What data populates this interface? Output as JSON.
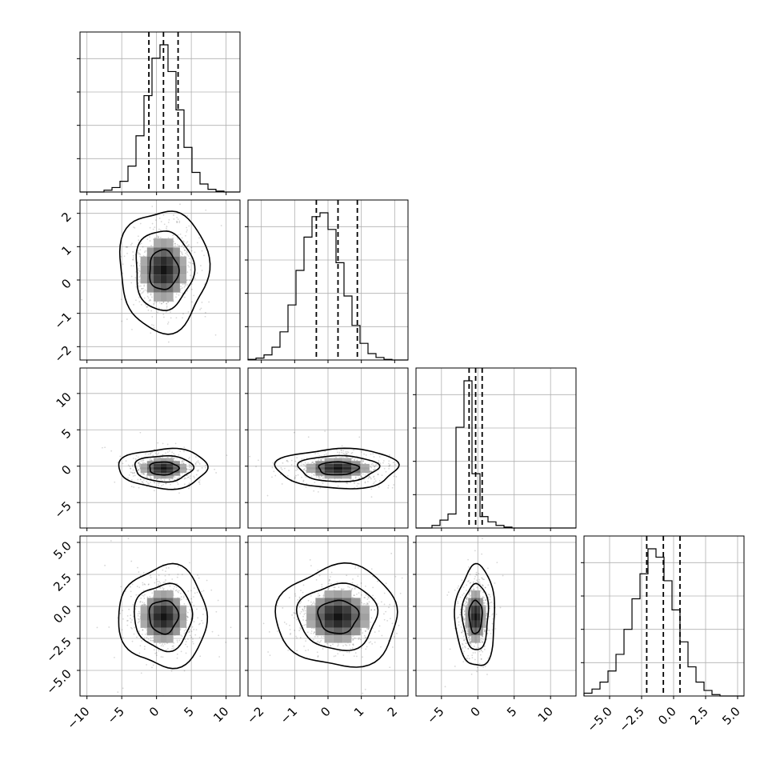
{
  "chart_data": {
    "type": "corner",
    "n_params": 4,
    "grid": true,
    "params": [
      {
        "range": [
          -11,
          12
        ],
        "ticks": [
          -10,
          -5,
          0,
          5,
          10
        ],
        "tick_labels": [
          "−10",
          "−5",
          "0",
          "5",
          "10"
        ],
        "mean": 1.0,
        "sigma": 2.1,
        "quantiles": [
          -1.1,
          1.0,
          3.1
        ]
      },
      {
        "range": [
          -2.4,
          2.4
        ],
        "ticks": [
          -2,
          -1,
          0,
          1,
          2
        ],
        "tick_labels": [
          "−2",
          "−1",
          "0",
          "1",
          "2"
        ],
        "mean": 0.3,
        "sigma": 0.6,
        "quantiles": [
          -0.35,
          0.3,
          0.88
        ]
      },
      {
        "range": [
          -8.5,
          13.5
        ],
        "ticks": [
          -5,
          0,
          5,
          10
        ],
        "tick_labels": [
          "−5",
          "0",
          "5",
          "10"
        ],
        "mean": -0.3,
        "sigma": 0.9,
        "quantiles": [
          -1.2,
          -0.3,
          0.6
        ]
      },
      {
        "range": [
          -7,
          5.5
        ],
        "ticks": [
          -5,
          -2.5,
          0,
          2.5,
          5
        ],
        "tick_labels": [
          "−5.0",
          "−2.5",
          "0.0",
          "2.5",
          "5.0"
        ],
        "mean": -0.8,
        "sigma": 1.3,
        "quantiles": [
          -2.1,
          -0.8,
          0.5
        ]
      }
    ],
    "histograms": [
      {
        "param": 0,
        "bins": [
          -11,
          12
        ],
        "counts": [
          0,
          0,
          0,
          0.2,
          0.5,
          1.2,
          2.9,
          6.3,
          10.8,
          15.0,
          16.5,
          13.5,
          9.2,
          5.0,
          2.2,
          0.9,
          0.3,
          0.1,
          0,
          0
        ]
      },
      {
        "param": 1,
        "bins": [
          -2.4,
          2.4
        ],
        "counts": [
          0.05,
          0.15,
          0.4,
          1.0,
          2.2,
          4.3,
          7.0,
          9.6,
          11.2,
          11.5,
          10.2,
          7.6,
          5.0,
          2.7,
          1.3,
          0.5,
          0.2,
          0.05,
          0,
          0
        ]
      },
      {
        "param": 2,
        "bins": [
          -8.5,
          13.5
        ],
        "counts": [
          0,
          0,
          0.3,
          0.9,
          1.6,
          11.5,
          16.8,
          6.2,
          1.3,
          0.7,
          0.3,
          0.1,
          0,
          0,
          0,
          0,
          0,
          0,
          0,
          0
        ]
      },
      {
        "param": 3,
        "bins": [
          -7,
          5.5
        ],
        "counts": [
          0.2,
          0.5,
          1.0,
          1.8,
          3.0,
          4.8,
          7.0,
          8.8,
          10.6,
          10.0,
          8.3,
          6.2,
          3.9,
          2.1,
          1.0,
          0.4,
          0.1,
          0,
          0,
          0
        ]
      }
    ],
    "pairs": [
      {
        "row": 1,
        "col": 0,
        "corr": 0.0
      },
      {
        "row": 2,
        "col": 0,
        "corr": 0.0
      },
      {
        "row": 2,
        "col": 1,
        "corr": 0.0
      },
      {
        "row": 3,
        "col": 0,
        "corr": 0.0
      },
      {
        "row": 3,
        "col": 1,
        "corr": 0.0
      },
      {
        "row": 3,
        "col": 2,
        "corr": 0.0
      }
    ],
    "contour_levels": [
      0.39,
      0.86,
      0.99
    ]
  }
}
